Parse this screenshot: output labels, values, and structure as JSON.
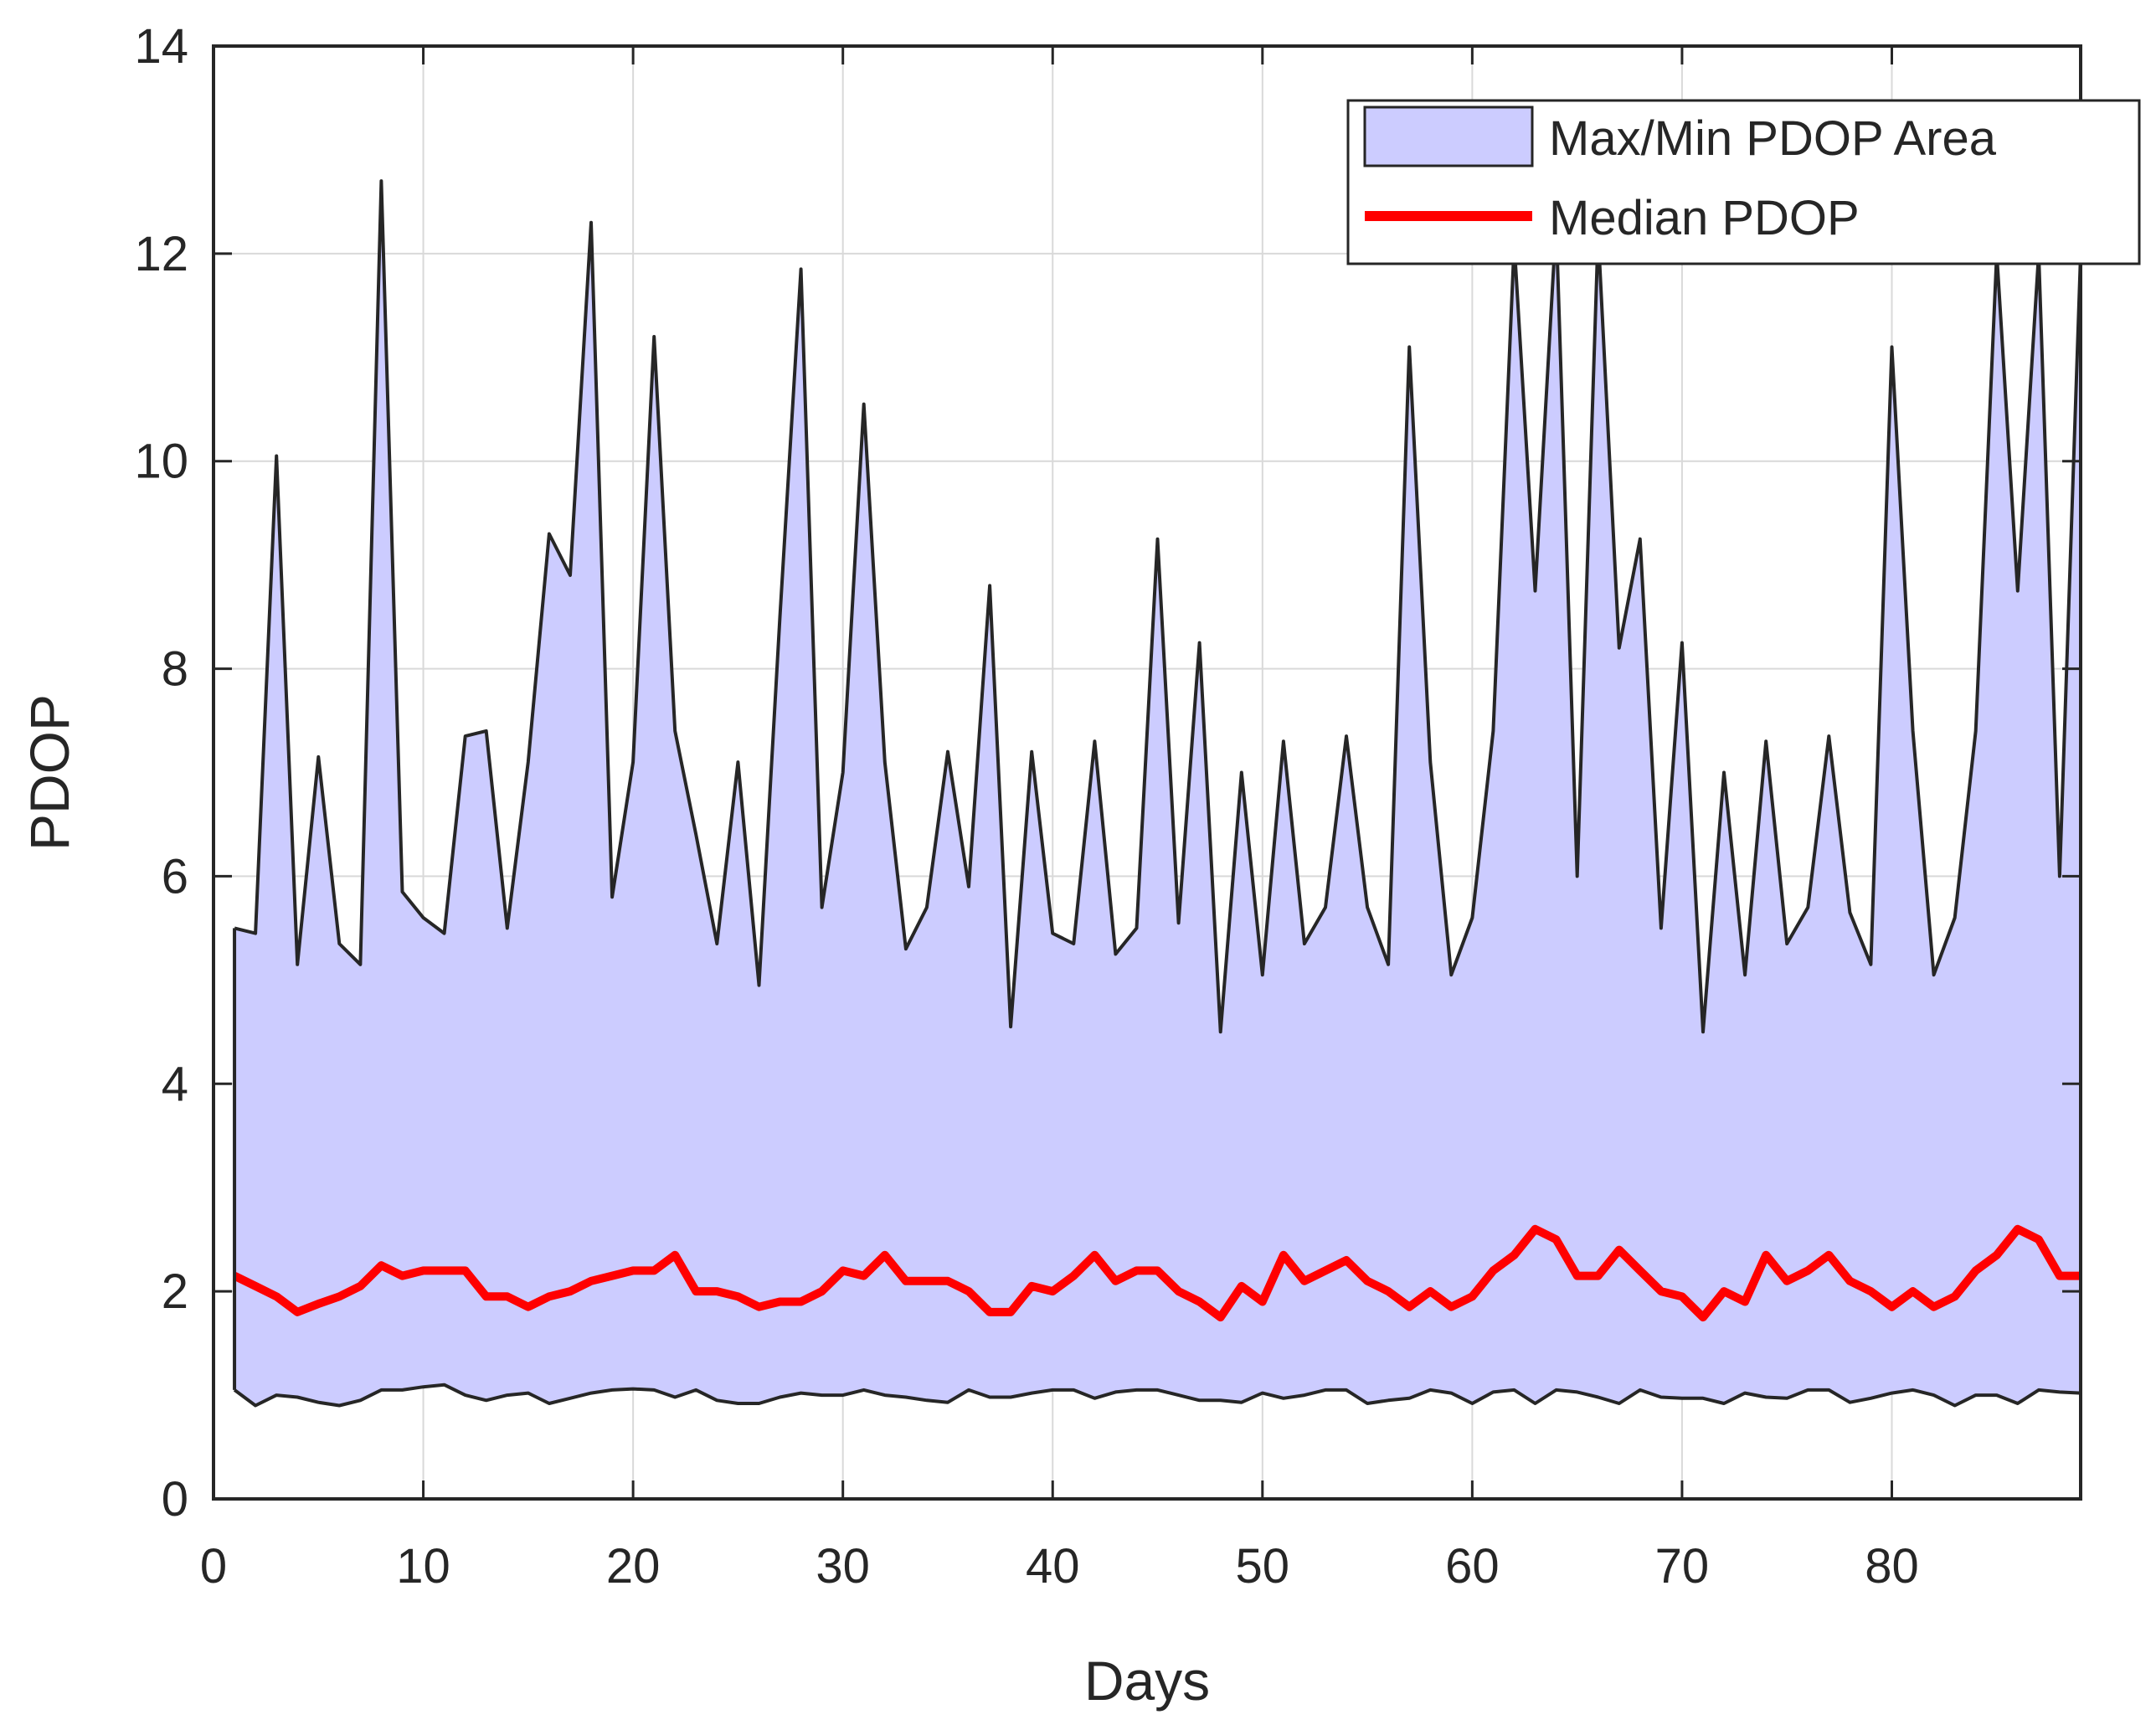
{
  "chart_data": {
    "type": "area",
    "title": "",
    "xlabel": "Days",
    "ylabel": "PDOP",
    "xlim": [
      0,
      89
    ],
    "ylim": [
      0,
      14
    ],
    "xticks": [
      0,
      10,
      20,
      30,
      40,
      50,
      60,
      70,
      80
    ],
    "yticks": [
      0,
      2,
      4,
      6,
      8,
      10,
      12,
      14
    ],
    "grid": true,
    "legend_position": "top-right",
    "colors": {
      "fill": "#ccccff",
      "edge": "#262626",
      "median": "#ff0000",
      "grid": "#d9d9d9",
      "axis": "#262626"
    },
    "x": [
      1,
      2,
      3,
      4,
      5,
      6,
      7,
      8,
      9,
      10,
      11,
      12,
      13,
      14,
      15,
      16,
      17,
      18,
      19,
      20,
      21,
      22,
      23,
      24,
      25,
      26,
      27,
      28,
      29,
      30,
      31,
      32,
      33,
      34,
      35,
      36,
      37,
      38,
      39,
      40,
      41,
      42,
      43,
      44,
      45,
      46,
      47,
      48,
      49,
      50,
      51,
      52,
      53,
      54,
      55,
      56,
      57,
      58,
      59,
      60,
      61,
      62,
      63,
      64,
      65,
      66,
      67,
      68,
      69,
      70,
      71,
      72,
      73,
      74,
      75,
      76,
      77,
      78,
      79,
      80,
      81,
      82,
      83,
      84,
      85,
      86,
      87,
      88,
      89
    ],
    "series": [
      {
        "name": "Max/Min PDOP Area",
        "max": [
          5.5,
          5.45,
          10.05,
          5.15,
          7.15,
          5.35,
          5.15,
          12.7,
          5.85,
          5.6,
          5.45,
          7.35,
          7.4,
          5.5,
          7.1,
          9.3,
          8.9,
          12.3,
          5.8,
          7.1,
          11.2,
          7.4,
          6.4,
          5.35,
          7.1,
          4.95,
          8.5,
          11.85,
          5.7,
          7.0,
          10.55,
          7.1,
          5.3,
          5.7,
          7.2,
          5.9,
          8.8,
          4.55,
          7.2,
          5.45,
          5.35,
          7.3,
          5.25,
          5.5,
          9.25,
          5.55,
          8.25,
          4.5,
          7.0,
          5.05,
          7.3,
          5.35,
          5.7,
          7.35,
          5.7,
          5.15,
          11.1,
          7.1,
          5.05,
          5.6,
          7.4,
          12.1,
          8.75,
          12.3,
          6.0,
          12.2,
          8.2,
          9.25,
          5.5,
          8.25,
          4.5,
          7.0,
          5.05,
          7.3,
          5.35,
          5.7,
          7.35,
          5.65,
          5.15,
          11.1,
          7.4,
          5.05,
          5.6,
          7.4,
          12.0,
          8.75,
          12.0,
          6.0,
          12.0
        ],
        "min": [
          1.05,
          0.9,
          1.0,
          0.98,
          0.93,
          0.9,
          0.95,
          1.05,
          1.05,
          1.08,
          1.1,
          1.0,
          0.95,
          1.0,
          1.02,
          0.92,
          0.97,
          1.02,
          1.05,
          1.06,
          1.05,
          0.98,
          1.05,
          0.95,
          0.92,
          0.92,
          0.98,
          1.02,
          1.0,
          1.0,
          1.05,
          1.0,
          0.98,
          0.95,
          0.93,
          1.05,
          0.98,
          0.98,
          1.02,
          1.05,
          1.05,
          0.97,
          1.03,
          1.05,
          1.05,
          1.0,
          0.95,
          0.95,
          0.93,
          1.02,
          0.97,
          1.0,
          1.05,
          1.05,
          0.92,
          0.95,
          0.97,
          1.05,
          1.02,
          0.92,
          1.03,
          1.05,
          0.92,
          1.05,
          1.03,
          0.98,
          0.92,
          1.05,
          0.98,
          0.97,
          0.97,
          0.92,
          1.02,
          0.98,
          0.97,
          1.05,
          1.05,
          0.93,
          0.97,
          1.02,
          1.05,
          1.0,
          0.9,
          1.0,
          1.0,
          0.92,
          1.05,
          1.03,
          1.02
        ]
      },
      {
        "name": "Median PDOP",
        "values": [
          2.15,
          2.05,
          1.95,
          1.8,
          1.88,
          1.95,
          2.05,
          2.25,
          2.15,
          2.2,
          2.2,
          2.2,
          1.95,
          1.95,
          1.85,
          1.95,
          2.0,
          2.1,
          2.15,
          2.2,
          2.2,
          2.35,
          2.0,
          2.0,
          1.95,
          1.85,
          1.9,
          1.9,
          2.0,
          2.2,
          2.15,
          2.35,
          2.1,
          2.1,
          2.1,
          2.0,
          1.8,
          1.8,
          2.05,
          2.0,
          2.15,
          2.35,
          2.1,
          2.2,
          2.2,
          2.0,
          1.9,
          1.75,
          2.05,
          1.9,
          2.35,
          2.1,
          2.2,
          2.3,
          2.1,
          2.0,
          1.85,
          2.0,
          1.85,
          1.95,
          2.2,
          2.35,
          2.6,
          2.5,
          2.15,
          2.15,
          2.4,
          2.2,
          2.0,
          1.95,
          1.75,
          2.0,
          1.9,
          2.35,
          2.1,
          2.2,
          2.35,
          2.1,
          2.0,
          1.85,
          2.0,
          1.85,
          1.95,
          2.2,
          2.35,
          2.6,
          2.5,
          2.15,
          2.15
        ]
      }
    ]
  }
}
